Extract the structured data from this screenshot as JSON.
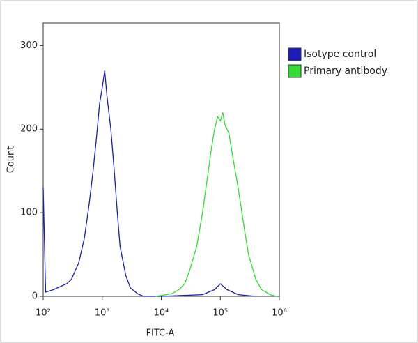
{
  "chart_data": {
    "type": "line",
    "xscale": "log",
    "xlabel": "FITC-A",
    "ylabel": "Count",
    "xlim": [
      100,
      1000000
    ],
    "ylim": [
      0,
      327
    ],
    "xticks": [
      {
        "value": 100,
        "label": "10²"
      },
      {
        "value": 1000,
        "label": "10³"
      },
      {
        "value": 10000,
        "label": "10⁴"
      },
      {
        "value": 100000,
        "label": "10⁵"
      },
      {
        "value": 1000000,
        "label": "10⁶"
      }
    ],
    "yticks": [
      0,
      100,
      200,
      300
    ],
    "legend": "right",
    "series": [
      {
        "name": "Isotype control",
        "color": "#1c1cb8",
        "x": [
          100,
          110,
          150,
          200,
          250,
          300,
          400,
          500,
          600,
          700,
          800,
          900,
          1000,
          1100,
          1200,
          1400,
          1600,
          1800,
          2000,
          2500,
          3000,
          4000,
          5000,
          10000,
          50000,
          80000,
          100000,
          130000,
          200000,
          400000
        ],
        "values": [
          130,
          5,
          8,
          12,
          15,
          20,
          40,
          70,
          110,
          150,
          190,
          230,
          250,
          270,
          240,
          200,
          150,
          100,
          60,
          25,
          10,
          3,
          0,
          0,
          2,
          8,
          15,
          8,
          2,
          0
        ]
      },
      {
        "name": "Primary antibody",
        "color": "#33dd33",
        "x": [
          8000,
          15000,
          20000,
          25000,
          30000,
          40000,
          50000,
          60000,
          70000,
          80000,
          90000,
          100000,
          110000,
          120000,
          140000,
          160000,
          200000,
          250000,
          300000,
          400000,
          500000,
          700000,
          900000
        ],
        "values": [
          0,
          3,
          8,
          15,
          30,
          60,
          100,
          140,
          175,
          200,
          215,
          210,
          220,
          205,
          195,
          170,
          130,
          85,
          50,
          20,
          8,
          2,
          0
        ]
      }
    ]
  }
}
